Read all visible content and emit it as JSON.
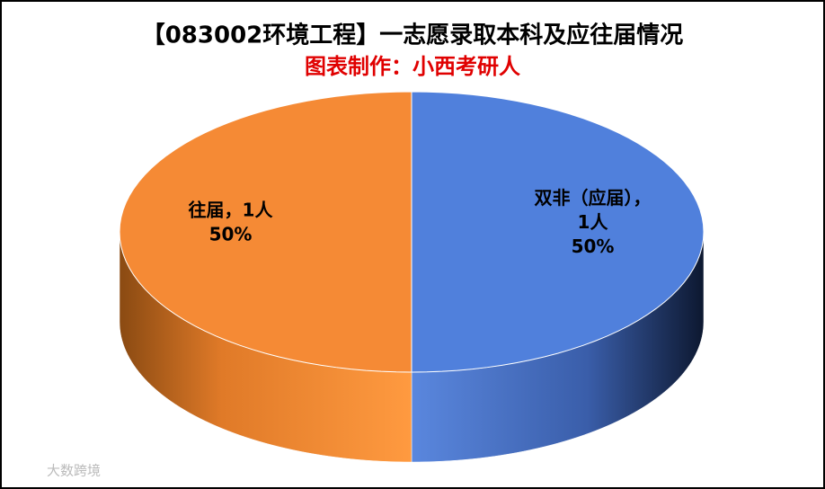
{
  "chart_data": {
    "type": "pie3d",
    "title": "【083002环境工程】一志愿录取本科及应往届情况",
    "subtitle": "图表制作：小西考研人",
    "categories": [
      "双非（应届）",
      "往届"
    ],
    "values": [
      1,
      1
    ],
    "value_labels": [
      "1人",
      "1人"
    ],
    "percentages": [
      50,
      50
    ],
    "percentage_labels": [
      "50%",
      "50%"
    ],
    "label_separator": "，",
    "colors": [
      "#5080dc",
      "#f58a35"
    ],
    "watermark": "大数跨境"
  }
}
